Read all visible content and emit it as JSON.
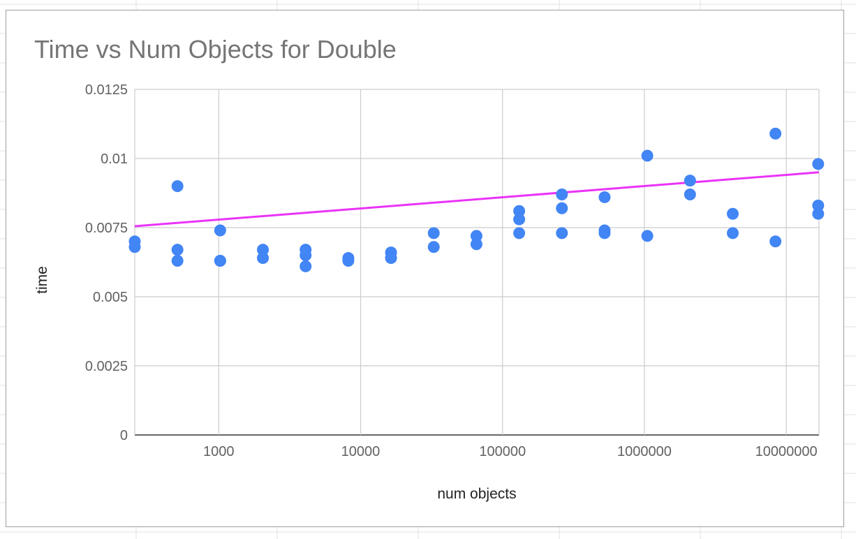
{
  "chart_data": {
    "type": "scatter",
    "title": "Time vs Num Objects for Double",
    "xlabel": "num objects",
    "ylabel": "time",
    "x_scale": "log",
    "xlim": [
      256,
      17000000
    ],
    "ylim": [
      0,
      0.0125
    ],
    "x_tick_labels": [
      "1000",
      "10000",
      "100000",
      "1000000",
      "10000000"
    ],
    "x_tick_values": [
      1000,
      10000,
      100000,
      1000000,
      10000000
    ],
    "y_tick_labels": [
      "0",
      "0.0025",
      "0.005",
      "0.0075",
      "0.01",
      "0.0125"
    ],
    "y_tick_values": [
      0,
      0.0025,
      0.005,
      0.0075,
      0.01,
      0.0125
    ],
    "grid": true,
    "legend": "none",
    "colors": {
      "points": "#4285f4",
      "trendline": "#ea33f7",
      "grid": "#cccccc",
      "title": "#757575"
    },
    "series": [
      {
        "points": [
          [
            256,
            0.007
          ],
          [
            256,
            0.0068
          ],
          [
            512,
            0.009
          ],
          [
            512,
            0.0067
          ],
          [
            512,
            0.0063
          ],
          [
            1024,
            0.0074
          ],
          [
            1024,
            0.0063
          ],
          [
            1024,
            0.0063
          ],
          [
            2048,
            0.0067
          ],
          [
            2048,
            0.0064
          ],
          [
            4096,
            0.0067
          ],
          [
            4096,
            0.0065
          ],
          [
            4096,
            0.0061
          ],
          [
            8192,
            0.0064
          ],
          [
            8192,
            0.0063
          ],
          [
            16384,
            0.0066
          ],
          [
            16384,
            0.0064
          ],
          [
            32768,
            0.0073
          ],
          [
            32768,
            0.0068
          ],
          [
            65536,
            0.0072
          ],
          [
            65536,
            0.0069
          ],
          [
            131072,
            0.0081
          ],
          [
            131072,
            0.0078
          ],
          [
            131072,
            0.0073
          ],
          [
            262144,
            0.0087
          ],
          [
            262144,
            0.0082
          ],
          [
            262144,
            0.0073
          ],
          [
            524288,
            0.0086
          ],
          [
            524288,
            0.0074
          ],
          [
            524288,
            0.0073
          ],
          [
            1048576,
            0.0101
          ],
          [
            1048576,
            0.0072
          ],
          [
            2097152,
            0.0092
          ],
          [
            2097152,
            0.0087
          ],
          [
            4194304,
            0.008
          ],
          [
            4194304,
            0.0073
          ],
          [
            8388608,
            0.0109
          ],
          [
            8388608,
            0.007
          ],
          [
            16777216,
            0.0098
          ],
          [
            16777216,
            0.0083
          ],
          [
            16777216,
            0.008
          ]
        ]
      }
    ],
    "trendline": {
      "type": "logarithmic",
      "start": [
        256,
        0.00755
      ],
      "end": [
        17000000,
        0.0095
      ]
    }
  }
}
